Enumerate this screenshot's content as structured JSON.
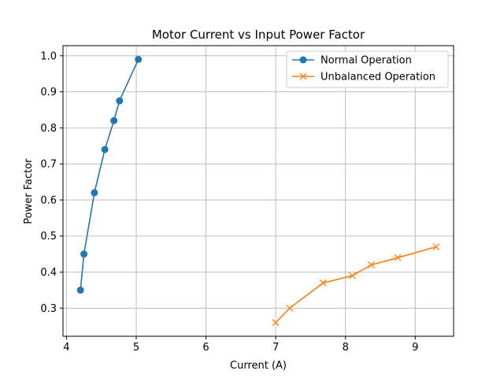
{
  "chart_data": {
    "type": "line",
    "title": "Motor Current vs Input Power Factor",
    "xlabel": "Current (A)",
    "ylabel": "Power Factor",
    "xlim": [
      3.95,
      9.55
    ],
    "ylim": [
      0.222,
      1.028
    ],
    "xticks": [
      4,
      5,
      6,
      7,
      8,
      9
    ],
    "yticks": [
      0.3,
      0.4,
      0.5,
      0.6,
      0.7,
      0.8,
      0.9,
      1.0
    ],
    "xtick_labels": [
      "4",
      "5",
      "6",
      "7",
      "8",
      "9"
    ],
    "ytick_labels": [
      "0.3",
      "0.4",
      "0.5",
      "0.6",
      "0.7",
      "0.8",
      "0.9",
      "1.0"
    ],
    "grid": true,
    "legend_position": "top-right",
    "series": [
      {
        "name": "Normal Operation",
        "color": "#1f77b4",
        "marker": "circle",
        "x": [
          4.2,
          4.25,
          4.4,
          4.55,
          4.68,
          4.76,
          5.03
        ],
        "y": [
          0.35,
          0.45,
          0.62,
          0.74,
          0.82,
          0.875,
          0.99
        ]
      },
      {
        "name": "Unbalanced Operation",
        "color": "#ff7f0e",
        "marker": "x",
        "x": [
          7.0,
          7.2,
          7.68,
          8.1,
          8.37,
          8.75,
          9.3
        ],
        "y": [
          0.26,
          0.3,
          0.37,
          0.39,
          0.42,
          0.44,
          0.47
        ]
      }
    ]
  }
}
